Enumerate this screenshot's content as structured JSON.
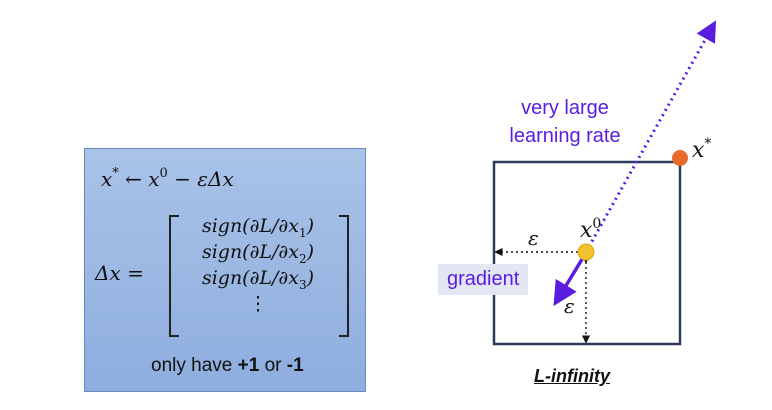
{
  "formula_box": {
    "update_rule_lhs": "x",
    "update_rule_star": "*",
    "update_rule_mid": " ← x",
    "update_rule_zero": "0",
    "update_rule_rhs": " − εΔx",
    "delta_lhs": "Δx =",
    "matrix_rows": [
      {
        "text": "sign(∂L/∂x",
        "sub": "1",
        "close": ")"
      },
      {
        "text": "sign(∂L/∂x",
        "sub": "2",
        "close": ")"
      },
      {
        "text": "sign(∂L/∂x",
        "sub": "3",
        "close": ")"
      },
      {
        "text": "⋮",
        "sub": "",
        "close": ""
      }
    ],
    "note_prefix": "only have ",
    "note_plus": "+1",
    "note_or": " or ",
    "note_minus": "-1"
  },
  "diagram": {
    "lr_line1": "very large",
    "lr_line2": "learning rate",
    "x_star": "x",
    "x_star_sup": "*",
    "x_zero": "x",
    "x_zero_sup": "0",
    "epsilon_horizontal": "ε",
    "epsilon_vertical": "ε",
    "gradient_label": "gradient",
    "caption": "L-infinity"
  },
  "colors": {
    "box_fill": "#98b6e4",
    "arrow_purple": "#5a1de0",
    "square_stroke": "#2e3a5c",
    "x0_point": "#f2c12e",
    "xstar_point": "#e8692c"
  }
}
